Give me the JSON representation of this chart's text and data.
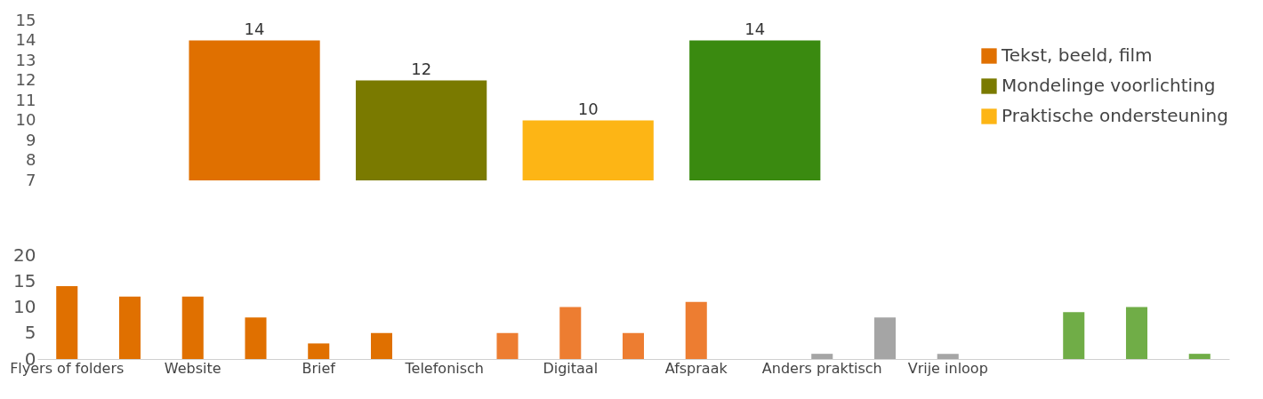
{
  "chart_data": [
    {
      "type": "bar",
      "categories": [
        null,
        null,
        null,
        null
      ],
      "series": [
        {
          "name": "Tekst, beeld, film",
          "color": "#e07000",
          "values": [
            14,
            null,
            null,
            null
          ]
        },
        {
          "name": "Mondelinge voorlichting",
          "color": "#7a7a00",
          "values": [
            null,
            12,
            null,
            null
          ]
        },
        {
          "name": "Praktische ondersteuning",
          "color": "#fdb515",
          "values": [
            null,
            null,
            10,
            null
          ]
        },
        {
          "color": "#3a8a10",
          "values": [
            null,
            null,
            null,
            14
          ]
        }
      ],
      "ylim": [
        7,
        15
      ],
      "yticks": [
        7,
        8,
        9,
        10,
        11,
        12,
        13,
        14,
        15
      ],
      "stacked": true,
      "data_labels": true,
      "legend": "right"
    },
    {
      "type": "bar",
      "categories": [
        "Flyers of folders",
        null,
        "Website",
        null,
        "Brief",
        null,
        "Telefonisch",
        null,
        "Digitaal",
        null,
        "Afspraak",
        null,
        "Anders praktisch",
        null,
        "Vrije inloop",
        null,
        null,
        null,
        null
      ],
      "values": [
        14,
        12,
        12,
        8,
        3,
        5,
        null,
        5,
        10,
        5,
        11,
        null,
        1,
        8,
        1,
        null,
        9,
        10,
        1
      ],
      "colors": [
        "#e07000",
        "#e07000",
        "#e07000",
        "#e07000",
        "#e07000",
        "#e07000",
        "#ed7d31",
        "#ed7d31",
        "#ed7d31",
        "#ed7d31",
        "#ed7d31",
        "#a5a5a5",
        "#a5a5a5",
        "#a5a5a5",
        "#a5a5a5",
        "#70ad47",
        "#70ad47",
        "#70ad47",
        "#70ad47"
      ],
      "ylim": [
        0,
        20
      ],
      "yticks": [
        0,
        5,
        10,
        15,
        20
      ]
    }
  ]
}
